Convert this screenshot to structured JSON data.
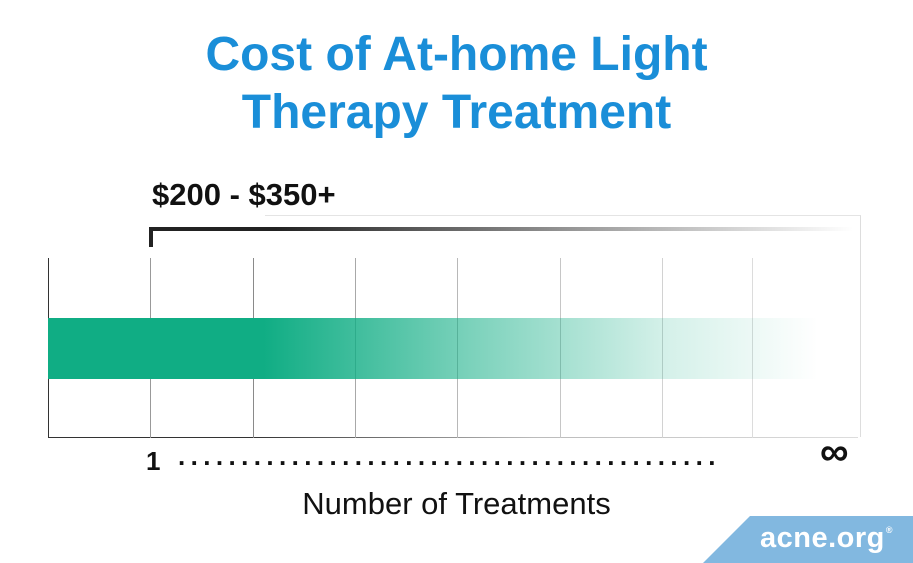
{
  "title_line1": "Cost of At-home Light",
  "title_line2": "Therapy Treatment",
  "price_range": "$200 - $350+",
  "tick_start": "1",
  "dots": "...........................................",
  "tick_end": "∞",
  "xlabel": "Number of Treatments",
  "logo_text": "acne.org",
  "logo_registered": "®",
  "colors": {
    "title": "#1a8ed8",
    "bar": "#10ad84",
    "logo_bg": "#82b8e0"
  },
  "chart_data": {
    "type": "bar",
    "title": "Cost of At-home Light Therapy Treatment",
    "xlabel": "Number of Treatments",
    "ylabel": "",
    "x_range": [
      "1",
      "∞"
    ],
    "annotation": "$200 - $350+",
    "bar_fades_out": true,
    "grid": true
  }
}
